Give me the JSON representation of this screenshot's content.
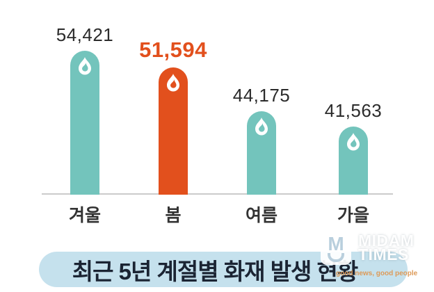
{
  "chart_data": {
    "type": "bar",
    "title": "최근 5년 계절별 화재 발생 현황",
    "categories": [
      "겨울",
      "봄",
      "여름",
      "가을"
    ],
    "values": [
      54421,
      51594,
      44175,
      41563
    ],
    "value_labels": [
      "54,421",
      "51,594",
      "44,175",
      "41,563"
    ],
    "highlight_index": 1,
    "ylim": [
      30000,
      56000
    ],
    "xlabel": "",
    "ylabel": "",
    "legend_position": "none",
    "grid": "off",
    "bar_color": "#73c4bc",
    "highlight_color": "#e2501d",
    "value_text_color": "#2b2b2b",
    "axis_line_color": "#cbcbcb",
    "flame_icon_color": "#ffffff"
  },
  "banner": {
    "title": "최근 5년 계절별 화재 발생 현황",
    "bg_color": "#c5e1ed",
    "text_color": "#1b2433"
  },
  "watermark": {
    "monogram": "M",
    "brand_line1": "MIDAM",
    "brand_line2": "TIMES",
    "tagline": "good news, good people",
    "tagline_color": "#dd9a58"
  }
}
